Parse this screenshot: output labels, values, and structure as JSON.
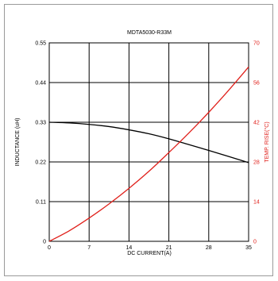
{
  "chart_data": {
    "type": "line",
    "title": "MDTA5030-R33M",
    "xlabel": "DC CURRENT(A)",
    "ylabel_left": "INDUCTANCE (uH)",
    "ylabel_right": "TEMP. RISE(°C)",
    "xlim": [
      0,
      35
    ],
    "ylim_left": [
      0,
      0.55
    ],
    "ylim_right": [
      0,
      70
    ],
    "x_ticks": [
      "0",
      "7",
      "14",
      "21",
      "28",
      "35"
    ],
    "y_left_ticks": [
      "0",
      "0.11",
      "0.22",
      "0.33",
      "0.44",
      "0.55"
    ],
    "y_right_ticks": [
      "0",
      "14",
      "28",
      "42",
      "56",
      "70"
    ],
    "grid": true,
    "series": [
      {
        "axis": "left",
        "color": "#000000",
        "x": [
          0,
          3.5,
          7,
          10.5,
          14,
          17.5,
          21,
          24.5,
          28,
          31.5,
          35
        ],
        "y": [
          0.33,
          0.328,
          0.324,
          0.318,
          0.309,
          0.298,
          0.284,
          0.268,
          0.252,
          0.235,
          0.218
        ]
      },
      {
        "axis": "right",
        "color": "#e0201b",
        "x": [
          0,
          3.5,
          7,
          10.5,
          14,
          17.5,
          21,
          24.5,
          28,
          31.5,
          35
        ],
        "y": [
          0,
          3.7,
          8.2,
          13.2,
          18.7,
          24.7,
          31.3,
          38.2,
          45.5,
          53.3,
          61.5
        ]
      }
    ]
  }
}
